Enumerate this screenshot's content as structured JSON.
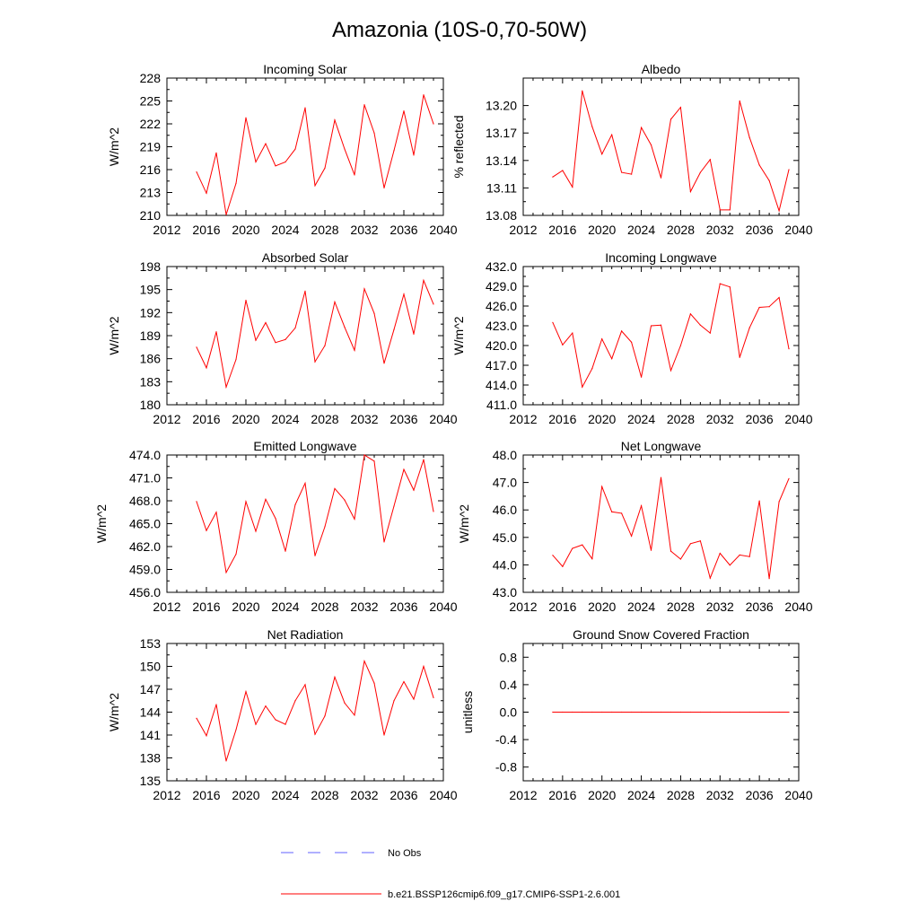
{
  "title": "Amazonia (10S-0,70-50W)",
  "colors": {
    "model": "#ff0000",
    "obs": "#6060ff",
    "axis": "#000000"
  },
  "legend": {
    "obs_label": "No Obs",
    "model_label": "b.e21.BSSP126cmip6.f09_g17.CMIP6-SSP1-2.6.001"
  },
  "chart_data": [
    {
      "type": "line",
      "title": "Incoming Solar",
      "ylabel": "W/m^2",
      "xlim": [
        2012,
        2040
      ],
      "xticks": [
        "2012",
        "2016",
        "2020",
        "2024",
        "2028",
        "2032",
        "2036",
        "2040"
      ],
      "ylim": [
        210,
        228
      ],
      "yticks": [
        "210",
        "213",
        "216",
        "219",
        "222",
        "225",
        "228"
      ],
      "x": [
        2015,
        2016,
        2017,
        2018,
        2019,
        2020,
        2021,
        2022,
        2023,
        2024,
        2025,
        2026,
        2027,
        2028,
        2029,
        2030,
        2031,
        2032,
        2033,
        2034,
        2035,
        2036,
        2037,
        2038,
        2039
      ],
      "values": [
        215.7,
        212.9,
        218.2,
        210.1,
        214.2,
        222.8,
        217.0,
        219.4,
        216.5,
        217.0,
        218.7,
        224.1,
        213.9,
        216.2,
        222.5,
        218.7,
        215.3,
        224.5,
        220.8,
        213.6,
        218.5,
        223.7,
        217.9,
        225.8,
        222.0
      ]
    },
    {
      "type": "line",
      "title": "Albedo",
      "ylabel": "% reflected",
      "xlim": [
        2012,
        2040
      ],
      "xticks": [
        "2012",
        "2016",
        "2020",
        "2024",
        "2028",
        "2032",
        "2036",
        "2040"
      ],
      "ylim": [
        13.08,
        13.23
      ],
      "yticks": [
        "13.08",
        "13.11",
        "13.14",
        "13.17",
        "13.20"
      ],
      "x": [
        2015,
        2016,
        2017,
        2018,
        2019,
        2020,
        2021,
        2022,
        2023,
        2024,
        2025,
        2026,
        2027,
        2028,
        2029,
        2030,
        2031,
        2032,
        2033,
        2034,
        2035,
        2036,
        2037,
        2038,
        2039
      ],
      "values": [
        13.122,
        13.129,
        13.111,
        13.216,
        13.177,
        13.147,
        13.168,
        13.127,
        13.125,
        13.176,
        13.157,
        13.121,
        13.185,
        13.198,
        13.106,
        13.127,
        13.141,
        13.086,
        13.086,
        13.205,
        13.165,
        13.135,
        13.118,
        13.085,
        13.13
      ]
    },
    {
      "type": "line",
      "title": "Absorbed Solar",
      "ylabel": "W/m^2",
      "xlim": [
        2012,
        2040
      ],
      "xticks": [
        "2012",
        "2016",
        "2020",
        "2024",
        "2028",
        "2032",
        "2036",
        "2040"
      ],
      "ylim": [
        180,
        198
      ],
      "yticks": [
        "180",
        "183",
        "186",
        "189",
        "192",
        "195",
        "198"
      ],
      "x": [
        2015,
        2016,
        2017,
        2018,
        2019,
        2020,
        2021,
        2022,
        2023,
        2024,
        2025,
        2026,
        2027,
        2028,
        2029,
        2030,
        2031,
        2032,
        2033,
        2034,
        2035,
        2036,
        2037,
        2038,
        2039
      ],
      "values": [
        187.5,
        184.8,
        189.5,
        182.3,
        185.9,
        193.6,
        188.4,
        190.7,
        188.1,
        188.5,
        190.0,
        194.8,
        185.6,
        187.7,
        193.4,
        190.1,
        187.1,
        195.1,
        191.9,
        185.4,
        189.8,
        194.4,
        189.2,
        196.2,
        193.1
      ]
    },
    {
      "type": "line",
      "title": "Incoming Longwave",
      "ylabel": "W/m^2",
      "xlim": [
        2012,
        2040
      ],
      "xticks": [
        "2012",
        "2016",
        "2020",
        "2024",
        "2028",
        "2032",
        "2036",
        "2040"
      ],
      "ylim": [
        411.0,
        432.0
      ],
      "yticks": [
        "411.0",
        "414.0",
        "417.0",
        "420.0",
        "423.0",
        "426.0",
        "429.0",
        "432.0"
      ],
      "x": [
        2015,
        2016,
        2017,
        2018,
        2019,
        2020,
        2021,
        2022,
        2023,
        2024,
        2025,
        2026,
        2027,
        2028,
        2029,
        2030,
        2031,
        2032,
        2033,
        2034,
        2035,
        2036,
        2037,
        2038,
        2039
      ],
      "values": [
        423.5,
        420.1,
        421.9,
        413.7,
        416.5,
        421.0,
        418.0,
        422.2,
        420.5,
        415.2,
        423.0,
        423.1,
        416.2,
        420.0,
        424.8,
        423.1,
        421.9,
        429.4,
        428.9,
        418.2,
        422.7,
        425.8,
        425.9,
        427.3,
        419.5
      ]
    },
    {
      "type": "line",
      "title": "Emitted Longwave",
      "ylabel": "W/m^2",
      "xlim": [
        2012,
        2040
      ],
      "xticks": [
        "2012",
        "2016",
        "2020",
        "2024",
        "2028",
        "2032",
        "2036",
        "2040"
      ],
      "ylim": [
        456.0,
        474.0
      ],
      "yticks": [
        "456.0",
        "459.0",
        "462.0",
        "465.0",
        "468.0",
        "471.0",
        "474.0"
      ],
      "x": [
        2015,
        2016,
        2017,
        2018,
        2019,
        2020,
        2021,
        2022,
        2023,
        2024,
        2025,
        2026,
        2027,
        2028,
        2029,
        2030,
        2031,
        2032,
        2033,
        2034,
        2035,
        2036,
        2037,
        2038,
        2039
      ],
      "values": [
        467.9,
        464.1,
        466.5,
        458.6,
        461.0,
        467.9,
        464.0,
        468.2,
        465.7,
        461.4,
        467.5,
        470.3,
        460.8,
        464.6,
        469.6,
        468.1,
        465.6,
        474.0,
        473.2,
        462.6,
        467.3,
        472.1,
        469.4,
        473.4,
        466.6
      ]
    },
    {
      "type": "line",
      "title": "Net Longwave",
      "ylabel": "W/m^2",
      "xlim": [
        2012,
        2040
      ],
      "xticks": [
        "2012",
        "2016",
        "2020",
        "2024",
        "2028",
        "2032",
        "2036",
        "2040"
      ],
      "ylim": [
        43.0,
        48.0
      ],
      "yticks": [
        "43.0",
        "44.0",
        "45.0",
        "46.0",
        "47.0",
        "48.0"
      ],
      "x": [
        2015,
        2016,
        2017,
        2018,
        2019,
        2020,
        2021,
        2022,
        2023,
        2024,
        2025,
        2026,
        2027,
        2028,
        2029,
        2030,
        2031,
        2032,
        2033,
        2034,
        2035,
        2036,
        2037,
        2038,
        2039
      ],
      "values": [
        44.35,
        43.94,
        44.6,
        44.73,
        44.22,
        46.85,
        45.93,
        45.88,
        45.05,
        46.15,
        44.53,
        47.18,
        44.5,
        44.21,
        44.77,
        44.87,
        43.52,
        44.42,
        43.99,
        44.36,
        44.3,
        46.33,
        43.5,
        46.3,
        47.14
      ]
    },
    {
      "type": "line",
      "title": "Net Radiation",
      "ylabel": "W/m^2",
      "xlim": [
        2012,
        2040
      ],
      "xticks": [
        "2012",
        "2016",
        "2020",
        "2024",
        "2028",
        "2032",
        "2036",
        "2040"
      ],
      "ylim": [
        135,
        153
      ],
      "yticks": [
        "135",
        "138",
        "141",
        "144",
        "147",
        "150",
        "153"
      ],
      "x": [
        2015,
        2016,
        2017,
        2018,
        2019,
        2020,
        2021,
        2022,
        2023,
        2024,
        2025,
        2026,
        2027,
        2028,
        2029,
        2030,
        2031,
        2032,
        2033,
        2034,
        2035,
        2036,
        2037,
        2038,
        2039
      ],
      "values": [
        143.2,
        140.9,
        145.0,
        137.6,
        141.7,
        146.7,
        142.4,
        144.8,
        143.0,
        142.4,
        145.5,
        147.6,
        141.1,
        143.5,
        148.6,
        145.2,
        143.6,
        150.7,
        147.8,
        141.0,
        145.5,
        148.0,
        145.7,
        150.0,
        145.9
      ]
    },
    {
      "type": "line",
      "title": "Ground Snow Covered Fraction",
      "ylabel": "unitless",
      "xlim": [
        2012,
        2040
      ],
      "xticks": [
        "2012",
        "2016",
        "2020",
        "2024",
        "2028",
        "2032",
        "2036",
        "2040"
      ],
      "ylim": [
        -1.0,
        1.0
      ],
      "yticks": [
        "-0.8",
        "-0.4",
        "0.0",
        "0.4",
        "0.8"
      ],
      "ytickvals": [
        -0.8,
        -0.4,
        0.0,
        0.4,
        0.8
      ],
      "x": [
        2015,
        2016,
        2017,
        2018,
        2019,
        2020,
        2021,
        2022,
        2023,
        2024,
        2025,
        2026,
        2027,
        2028,
        2029,
        2030,
        2031,
        2032,
        2033,
        2034,
        2035,
        2036,
        2037,
        2038,
        2039
      ],
      "values": [
        0,
        0,
        0,
        0,
        0,
        0,
        0,
        0,
        0,
        0,
        0,
        0,
        0,
        0,
        0,
        0,
        0,
        0,
        0,
        0,
        0,
        0,
        0,
        0,
        0
      ]
    }
  ]
}
